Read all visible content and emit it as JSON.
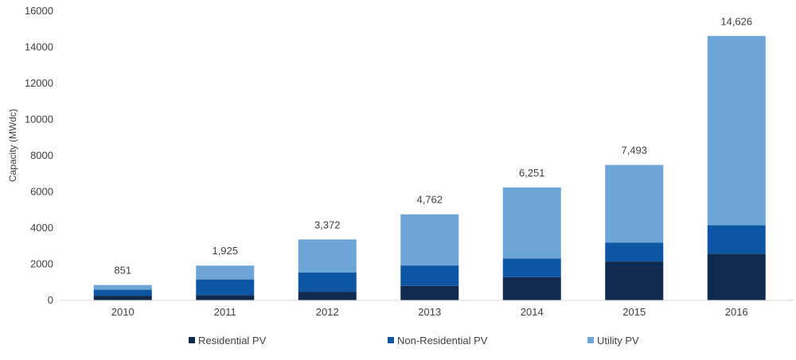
{
  "chart_data": {
    "type": "bar",
    "stacked": true,
    "title": "",
    "xlabel": "",
    "ylabel": "Capacity (MWdc)",
    "ylim": [
      0,
      16000
    ],
    "yticks": [
      "0",
      "2000",
      "4000",
      "6000",
      "8000",
      "10000",
      "12000",
      "14000",
      "16000"
    ],
    "grid": false,
    "legend_position": "bottom",
    "categories": [
      "2010",
      "2011",
      "2012",
      "2013",
      "2014",
      "2015",
      "2016"
    ],
    "series": [
      {
        "name": "Residential PV",
        "color": "#0f2a4e",
        "values": [
          260,
          300,
          480,
          800,
          1280,
          2150,
          2580
        ]
      },
      {
        "name": "Non-Residential PV",
        "color": "#0e56a4",
        "values": [
          330,
          860,
          1070,
          1130,
          1040,
          1050,
          1580
        ]
      },
      {
        "name": "Utility PV",
        "color": "#6da6d6",
        "values": [
          261,
          765,
          1822,
          2832,
          3931,
          4293,
          10466
        ]
      }
    ],
    "totals": [
      "851",
      "1,925",
      "3,372",
      "4,762",
      "6,251",
      "7,493",
      "14,626"
    ]
  }
}
